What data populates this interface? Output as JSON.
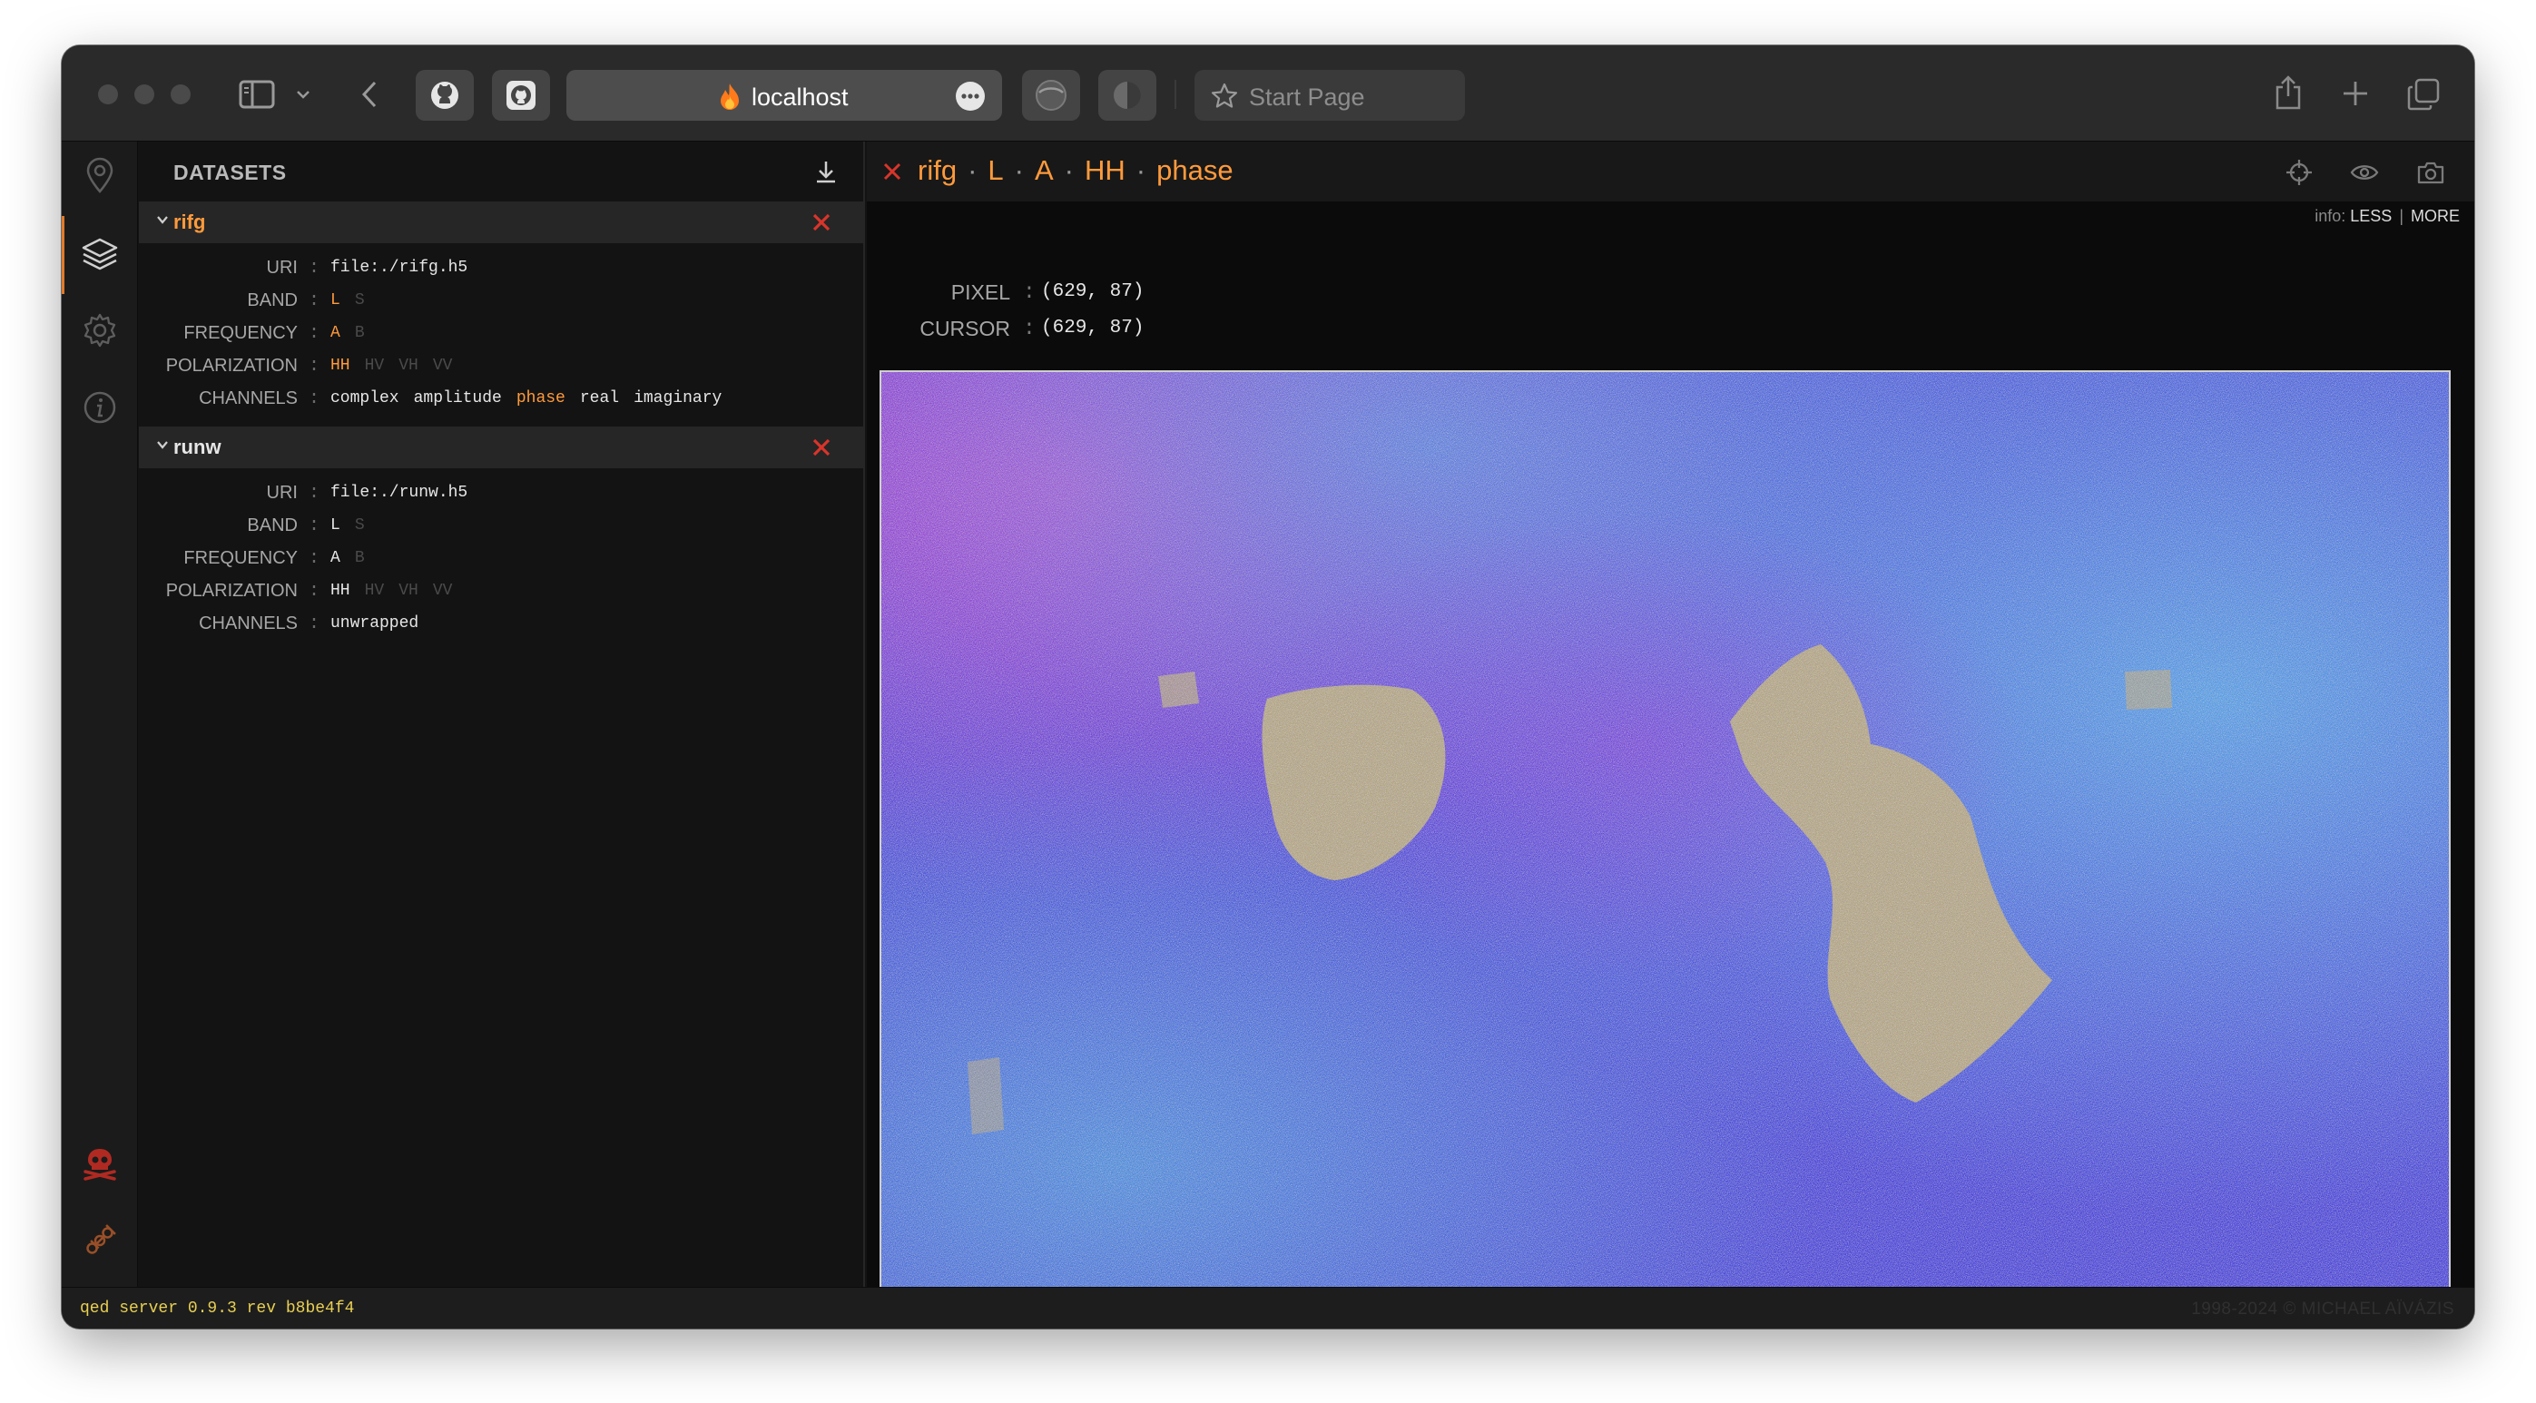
{
  "browser": {
    "url": "localhost",
    "start_page": "Start Page"
  },
  "panel": {
    "title": "DATASETS",
    "datasets": [
      {
        "name": "rifg",
        "name_color": "#ff9a3c",
        "uri": "file:./rifg.h5",
        "band": [
          {
            "v": "L",
            "s": "sel"
          },
          {
            "v": "S",
            "s": "off"
          }
        ],
        "frequency": [
          {
            "v": "A",
            "s": "sel"
          },
          {
            "v": "B",
            "s": "off"
          }
        ],
        "polarization": [
          {
            "v": "HH",
            "s": "sel"
          },
          {
            "v": "HV",
            "s": "off"
          },
          {
            "v": "VH",
            "s": "off"
          },
          {
            "v": "VV",
            "s": "off"
          }
        ],
        "channels": [
          {
            "v": "complex",
            "s": "on"
          },
          {
            "v": "amplitude",
            "s": "on"
          },
          {
            "v": "phase",
            "s": "sel"
          },
          {
            "v": "real",
            "s": "on"
          },
          {
            "v": "imaginary",
            "s": "on"
          }
        ]
      },
      {
        "name": "runw",
        "name_color": "#e6e6e6",
        "uri": "file:./runw.h5",
        "band": [
          {
            "v": "L",
            "s": "on"
          },
          {
            "v": "S",
            "s": "off"
          }
        ],
        "frequency": [
          {
            "v": "A",
            "s": "on"
          },
          {
            "v": "B",
            "s": "off"
          }
        ],
        "polarization": [
          {
            "v": "HH",
            "s": "on"
          },
          {
            "v": "HV",
            "s": "off"
          },
          {
            "v": "VH",
            "s": "off"
          },
          {
            "v": "VV",
            "s": "off"
          }
        ],
        "channels": [
          {
            "v": "unwrapped",
            "s": "on"
          }
        ]
      }
    ],
    "labels": {
      "uri": "URI",
      "band": "BAND",
      "frequency": "FREQUENCY",
      "polarization": "POLARIZATION",
      "channels": "CHANNELS",
      "sep": ":"
    }
  },
  "viewer": {
    "title_parts": [
      "rifg",
      "L",
      "A",
      "HH",
      "phase"
    ],
    "title_sep": "·",
    "info_label": "info:",
    "info_less": "LESS",
    "info_more": "MORE",
    "pixel_label": "PIXEL",
    "pixel_value": "(629, 87)",
    "cursor_label": "CURSOR",
    "cursor_value": "(629, 87)",
    "image_alt": "interferogram phase raster"
  },
  "status": {
    "left": "qed server 0.9.3 rev b8be4f4",
    "right": "1998-2024 © MICHAEL AÏVÁZIS"
  },
  "colors": {
    "accent": "#ff9a3c",
    "close": "#d9352b",
    "status_text": "#e8cf52"
  }
}
